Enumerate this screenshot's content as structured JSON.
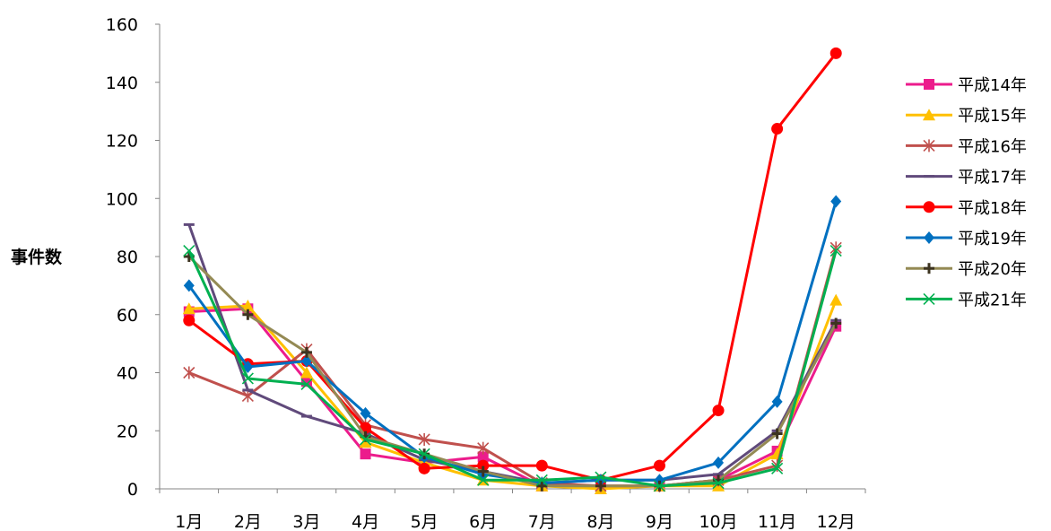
{
  "chart_data": {
    "type": "line",
    "title": "",
    "xlabel": "",
    "ylabel": "事件数",
    "ylim": [
      0,
      160
    ],
    "yticks": [
      0,
      20,
      40,
      60,
      80,
      100,
      120,
      140,
      160
    ],
    "categories": [
      "1月",
      "2月",
      "3月",
      "4月",
      "5月",
      "6月",
      "7月",
      "8月",
      "9月",
      "10月",
      "11月",
      "12月"
    ],
    "grid": false,
    "legend_position": "right",
    "series": [
      {
        "name": "平成14年",
        "color": "#ec1c8c",
        "marker": "square",
        "values": [
          61,
          62,
          37,
          12,
          9,
          11,
          1,
          1,
          1,
          3,
          13,
          56
        ]
      },
      {
        "name": "平成15年",
        "color": "#ffc000",
        "marker": "triangle",
        "values": [
          62,
          63,
          40,
          16,
          9,
          3,
          1,
          0,
          1,
          1,
          12,
          65
        ]
      },
      {
        "name": "平成16年",
        "color": "#c0504d",
        "marker": "asterisk",
        "values": [
          40,
          32,
          48,
          22,
          17,
          14,
          2,
          1,
          1,
          3,
          8,
          83
        ]
      },
      {
        "name": "平成17年",
        "color": "#604a7b",
        "marker": "dash",
        "values": [
          91,
          34,
          25,
          19,
          10,
          6,
          2,
          3,
          3,
          5,
          20,
          58
        ]
      },
      {
        "name": "平成18年",
        "color": "#ff0000",
        "marker": "circle",
        "values": [
          58,
          43,
          44,
          21,
          7,
          8,
          8,
          3,
          8,
          27,
          124,
          150
        ]
      },
      {
        "name": "平成19年",
        "color": "#0070c0",
        "marker": "diamond",
        "values": [
          70,
          42,
          44,
          26,
          11,
          5,
          2,
          3,
          3,
          9,
          30,
          99
        ]
      },
      {
        "name": "平成20年",
        "color": "#948a54",
        "marker": "plus",
        "values": [
          80,
          60,
          47,
          18,
          12,
          6,
          1,
          1,
          1,
          3,
          19,
          57
        ]
      },
      {
        "name": "平成21年",
        "color": "#00b050",
        "marker": "x",
        "values": [
          82,
          38,
          36,
          17,
          12,
          3,
          3,
          4,
          1,
          2,
          7,
          82
        ]
      }
    ]
  }
}
